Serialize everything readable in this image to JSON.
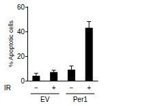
{
  "chart_data": {
    "type": "bar",
    "y_label": "% Apoptotic cells",
    "x_label": "IR",
    "categories": [
      "−",
      "+",
      "−",
      "+"
    ],
    "groups": [
      "EV",
      "Per1"
    ],
    "values": [
      4,
      7,
      9,
      43
    ],
    "error": [
      2,
      1.5,
      3,
      5
    ],
    "color": "#000000",
    "ylim": [
      0,
      60
    ],
    "yticks": [
      0,
      20,
      40,
      60
    ],
    "grid": false
  }
}
